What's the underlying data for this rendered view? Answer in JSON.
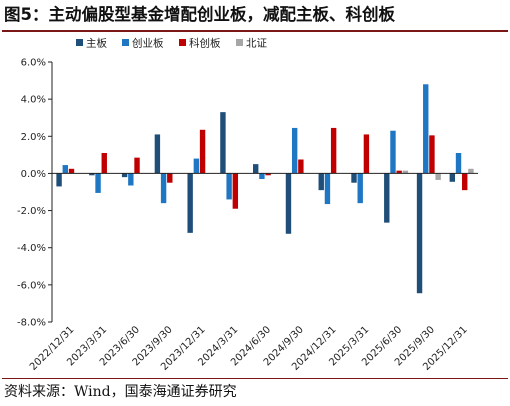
{
  "title": "图5：主动偏股型基金增配创业板，减配主板、科创板",
  "source": "资料来源：Wind，国泰海通证券研究",
  "chart_data": {
    "type": "bar",
    "categories": [
      "2022/12/31",
      "2023/3/31",
      "2023/6/30",
      "2023/9/30",
      "2023/12/31",
      "2024/3/31",
      "2024/6/30",
      "2024/9/30",
      "2024/12/31",
      "2025/3/31",
      "2025/6/30",
      "2025/9/30",
      "2025/12/31"
    ],
    "series": [
      {
        "name": "主板",
        "color": "#1f4e79",
        "values": [
          -0.7,
          -0.1,
          -0.2,
          2.1,
          -3.2,
          3.3,
          0.5,
          -3.25,
          -0.9,
          -0.5,
          -2.65,
          -6.45,
          -0.45
        ]
      },
      {
        "name": "创业板",
        "color": "#1f77c4",
        "values": [
          0.45,
          -1.05,
          -0.65,
          -1.6,
          0.8,
          -1.4,
          -0.3,
          2.45,
          -1.65,
          -1.6,
          2.3,
          4.8,
          1.1
        ]
      },
      {
        "name": "科创板",
        "color": "#c00000",
        "values": [
          0.25,
          1.1,
          0.85,
          -0.5,
          2.35,
          -1.9,
          -0.1,
          0.75,
          2.45,
          2.1,
          0.15,
          2.05,
          -0.9
        ]
      },
      {
        "name": "北证",
        "color": "#a6a6a6",
        "values": [
          0.0,
          0.0,
          0.0,
          0.0,
          0.0,
          0.0,
          0.0,
          0.0,
          0.0,
          0.0,
          0.15,
          -0.35,
          0.25
        ]
      }
    ],
    "ylim": [
      -8,
      6
    ],
    "yticks": [
      "6.0%",
      "4.0%",
      "2.0%",
      "0.0%",
      "-2.0%",
      "-4.0%",
      "-6.0%",
      "-8.0%"
    ],
    "ytick_values": [
      6,
      4,
      2,
      0,
      -2,
      -4,
      -6,
      -8
    ],
    "legend_position": "top-left",
    "grid": false
  }
}
